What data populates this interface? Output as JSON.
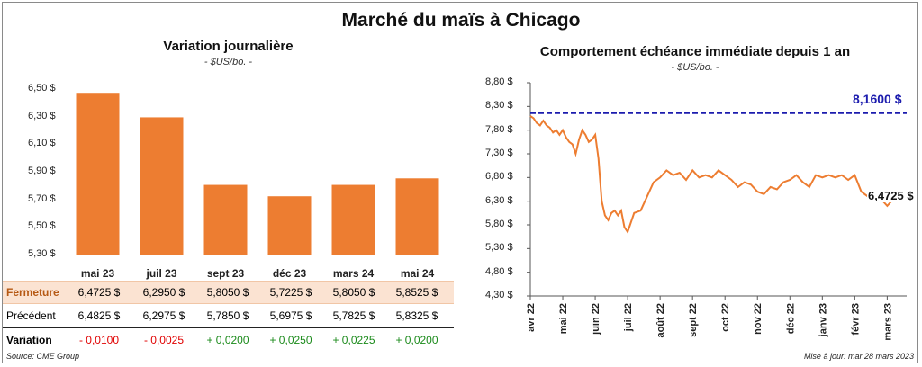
{
  "title": "Marché du maïs à Chicago",
  "source": "Source: CME Group",
  "updated": "Mise à jour: mar 28 mars 2023",
  "colors": {
    "bar": "#ED7D31",
    "line": "#ED7D31",
    "reference": "#1c1cae",
    "closing_row_bg": "#FBE3D2",
    "negative": "#e00000",
    "positive": "#1a8a1a"
  },
  "left_panel": {
    "title": "Variation  journalière",
    "unit": "- $US/bo. -",
    "table": {
      "labels": {
        "closing": "Fermeture",
        "previous": "Précédent",
        "change": "Variation"
      },
      "closing": [
        "6,4725  $",
        "6,2950  $",
        "5,8050  $",
        "5,7225  $",
        "5,8050  $",
        "5,8525  $"
      ],
      "previous": [
        "6,4825  $",
        "6,2975  $",
        "5,7850  $",
        "5,6975  $",
        "5,7825  $",
        "5,8325  $"
      ],
      "change": [
        "- 0,0100",
        "- 0,0025",
        "+ 0,0200",
        "+ 0,0250",
        "+ 0,0225",
        "+ 0,0200"
      ]
    }
  },
  "right_panel": {
    "title": "Comportement  échéance immédiate depuis 1 an",
    "unit": "- $US/bo. -",
    "last_value_label": "6,4725 $",
    "reference_label": "8,1600 $"
  },
  "chart_data": [
    {
      "type": "bar",
      "title": "Variation  journalière",
      "categories": [
        "mai 23",
        "juil 23",
        "sept 23",
        "déc 23",
        "mars 24",
        "mai 24"
      ],
      "values": [
        6.4725,
        6.295,
        5.805,
        5.7225,
        5.805,
        5.8525
      ],
      "ylim": [
        5.3,
        6.5
      ],
      "yticks": [
        "6,50 $",
        "6,30 $",
        "6,10 $",
        "5,90 $",
        "5,70 $",
        "5,50 $",
        "5,30 $"
      ],
      "grid": false
    },
    {
      "type": "line",
      "title": "Comportement  échéance immédiate depuis 1 an",
      "ylim": [
        4.3,
        8.8
      ],
      "yticks": [
        "8,80 $",
        "8,30 $",
        "7,80 $",
        "7,30 $",
        "6,80 $",
        "6,30 $",
        "5,80 $",
        "5,30 $",
        "4,80 $",
        "4,30 $"
      ],
      "xticks": [
        "avr 22",
        "mai 22",
        "juin 22",
        "juil 22",
        "août 22",
        "sept 22",
        "oct 22",
        "nov 22",
        "déc 22",
        "janv 23",
        "févr 23",
        "mars 23"
      ],
      "reference_line": {
        "value": 8.16,
        "style": "dashed"
      },
      "series": [
        {
          "x": [
            0.0,
            0.1,
            0.2,
            0.3,
            0.4,
            0.5,
            0.6,
            0.7,
            0.8,
            0.9,
            1.0,
            1.1,
            1.2,
            1.3,
            1.4,
            1.5,
            1.6,
            1.7,
            1.8,
            1.9,
            2.0,
            2.1,
            2.2,
            2.3,
            2.4,
            2.5,
            2.6,
            2.7,
            2.8,
            2.9,
            3.0,
            3.2,
            3.4,
            3.6,
            3.8,
            4.0,
            4.2,
            4.4,
            4.6,
            4.8,
            5.0,
            5.2,
            5.4,
            5.6,
            5.8,
            6.0,
            6.2,
            6.4,
            6.6,
            6.8,
            7.0,
            7.2,
            7.4,
            7.6,
            7.8,
            8.0,
            8.2,
            8.4,
            8.6,
            8.8,
            9.0,
            9.2,
            9.4,
            9.6,
            9.8,
            10.0,
            10.2,
            10.4,
            10.6,
            10.8,
            11.0,
            11.2,
            11.4,
            11.6
          ],
          "y": [
            8.1,
            8.05,
            7.95,
            7.9,
            8.0,
            7.9,
            7.85,
            7.75,
            7.8,
            7.7,
            7.8,
            7.65,
            7.55,
            7.5,
            7.3,
            7.6,
            7.8,
            7.7,
            7.55,
            7.6,
            7.7,
            7.2,
            6.3,
            6.0,
            5.9,
            6.05,
            6.1,
            6.0,
            6.1,
            5.75,
            5.65,
            6.05,
            6.1,
            6.4,
            6.7,
            6.8,
            6.95,
            6.85,
            6.9,
            6.75,
            6.95,
            6.8,
            6.85,
            6.8,
            6.95,
            6.85,
            6.75,
            6.6,
            6.7,
            6.65,
            6.5,
            6.45,
            6.6,
            6.55,
            6.7,
            6.75,
            6.85,
            6.7,
            6.6,
            6.85,
            6.8,
            6.85,
            6.8,
            6.85,
            6.75,
            6.85,
            6.5,
            6.4,
            6.3,
            6.35,
            6.2,
            6.35,
            6.45,
            6.4725
          ]
        }
      ],
      "grid": false
    }
  ]
}
